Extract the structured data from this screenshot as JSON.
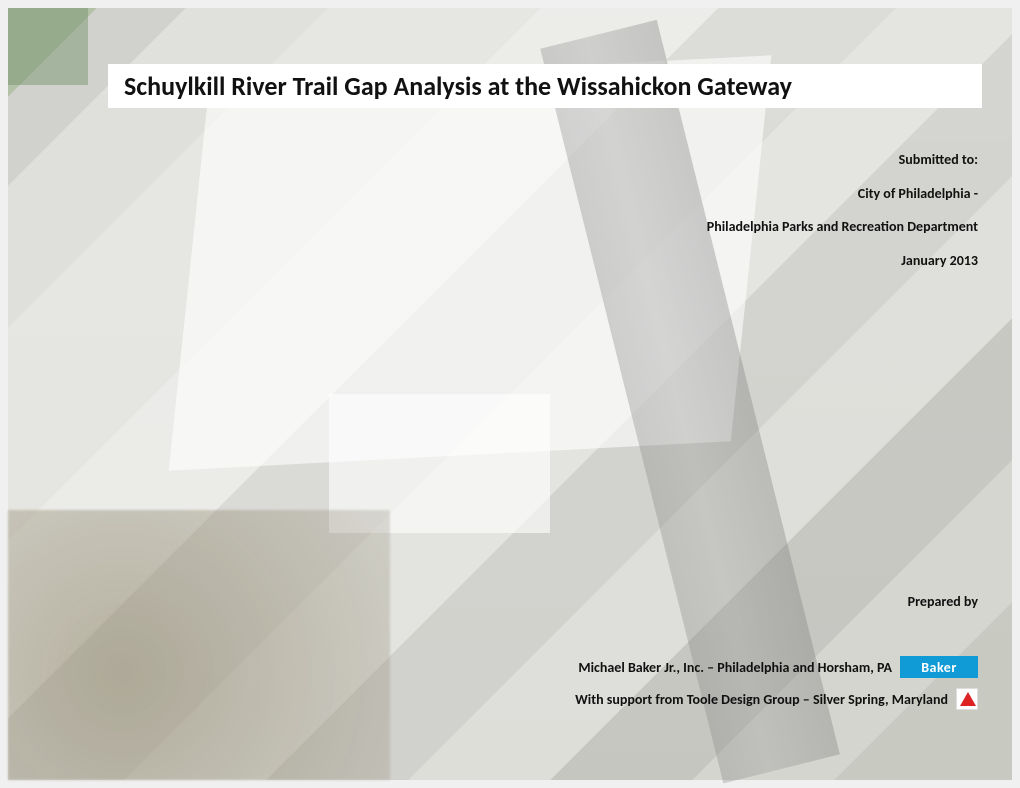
{
  "title": "Schuylkill River Trail Gap Analysis at the Wissahickon Gateway",
  "meta": {
    "submitted_to_label": "Submitted to:",
    "client": "City of Philadelphia -",
    "department": "Philadelphia Parks and Recreation Department",
    "date": "January 2013"
  },
  "prepared": {
    "label": "Prepared by",
    "prime": "Michael Baker Jr., Inc. – Philadelphia and Horsham, PA",
    "sub": "With support from Toole Design Group – Silver Spring, Maryland",
    "baker_logo_text": "Baker"
  },
  "colors": {
    "title_bg": "#ffffff",
    "text": "#111111",
    "baker_blue": "#109bd7",
    "toole_red": "#dd2222"
  }
}
